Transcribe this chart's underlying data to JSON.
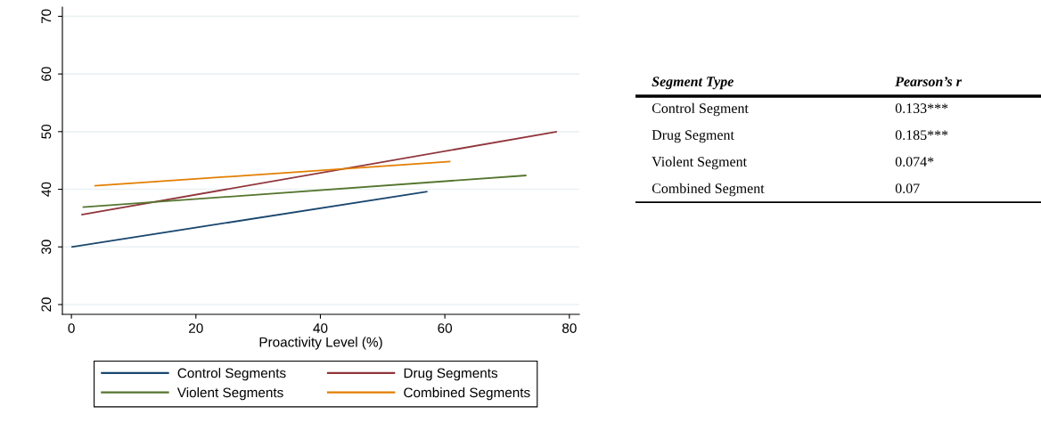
{
  "chart_data": [
    {
      "type": "line",
      "xlabel": "Proactivity Level (%)",
      "xlim": [
        -1.45,
        81.6
      ],
      "ylim": [
        18.3,
        71.6
      ],
      "xticks": [
        0,
        20,
        40,
        60,
        80
      ],
      "yticks": [
        20,
        30,
        40,
        50,
        60,
        70
      ],
      "grid": "y",
      "legend": "bottom",
      "line_style": "solid",
      "series": [
        {
          "name": "Control Segments",
          "color": "#1a476f",
          "x": [
            0,
            57.2
          ],
          "values": [
            30,
            39.6
          ]
        },
        {
          "name": "Drug Segments",
          "color": "#90353b",
          "x": [
            1.6,
            78
          ],
          "values": [
            35.6,
            50
          ]
        },
        {
          "name": "Violent Segments",
          "color": "#55752f",
          "x": [
            1.8,
            73.1
          ],
          "values": [
            36.9,
            42.4
          ]
        },
        {
          "name": "Combined Segments",
          "color": "#e37e00",
          "x": [
            3.7,
            60.9
          ],
          "values": [
            40.6,
            44.8
          ]
        }
      ]
    },
    {
      "type": "other",
      "annotations": [
        "Segment Type",
        "Pearson’s r",
        "Control Segment",
        "0.133***",
        "Drug Segment",
        "0.185***",
        "Violent Segment",
        "0.074*",
        "Combined Segment",
        "0.07"
      ]
    }
  ]
}
